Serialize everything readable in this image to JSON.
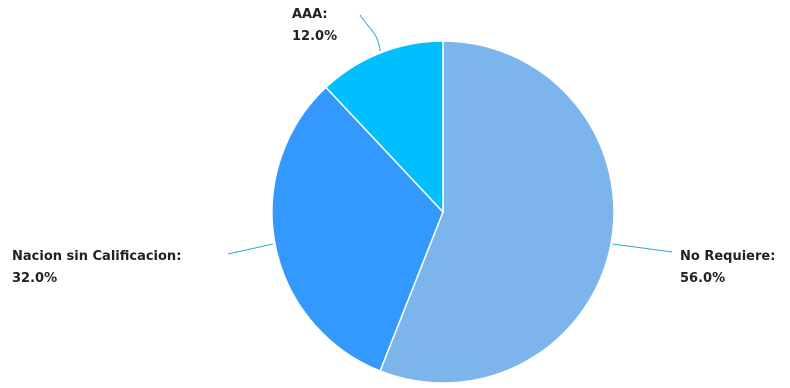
{
  "chart_data": {
    "type": "pie",
    "title": "",
    "legend": "none",
    "slices": [
      {
        "label": "No Requiere",
        "value": 56.0,
        "value_text": "56.0%",
        "color": "#7cb5ec"
      },
      {
        "label": "Nacion sin Calificacion",
        "value": 32.0,
        "value_text": "32.0%",
        "color": "#3399ff"
      },
      {
        "label": "AAA",
        "value": 12.0,
        "value_text": "12.0%",
        "color": "#00bfff"
      }
    ],
    "data_label_format": "{label}:\n{value}%",
    "connector_color": "#2ea6d9"
  }
}
